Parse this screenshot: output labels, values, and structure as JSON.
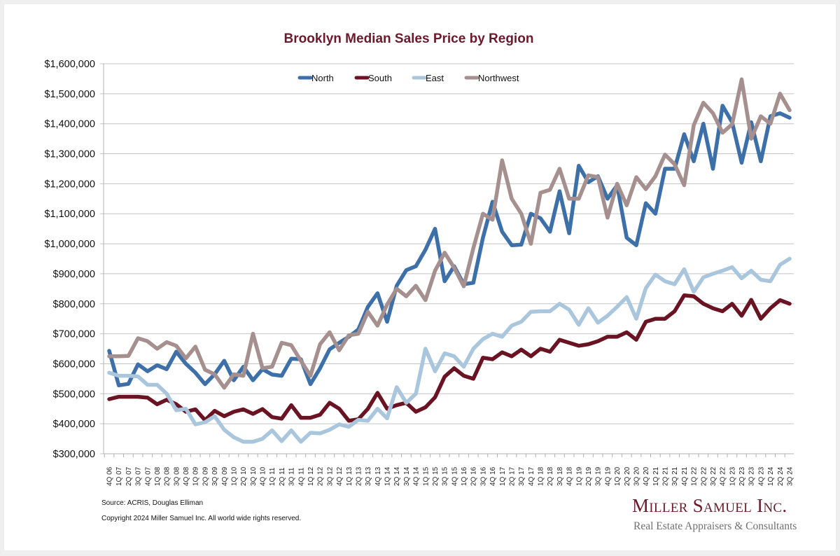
{
  "chart_data": {
    "type": "line",
    "title": "Brooklyn Median Sales Price by Region",
    "xlabel": "",
    "ylabel": "",
    "ylim": [
      300000,
      1600000
    ],
    "ytick_step": 100000,
    "yticks": [
      "$300,000",
      "$400,000",
      "$500,000",
      "$600,000",
      "$700,000",
      "$800,000",
      "$900,000",
      "$1,000,000",
      "$1,100,000",
      "$1,200,000",
      "$1,300,000",
      "$1,400,000",
      "$1,500,000",
      "$1,600,000"
    ],
    "grid": true,
    "legend_position": "top-center",
    "categories": [
      "4Q 06",
      "1Q 07",
      "2Q 07",
      "3Q 07",
      "4Q 07",
      "1Q 08",
      "2Q 08",
      "3Q 08",
      "4Q 08",
      "1Q 09",
      "2Q 09",
      "3Q 09",
      "4Q 09",
      "1Q 10",
      "2Q 10",
      "3Q 10",
      "4Q 10",
      "1Q 11",
      "2Q 11",
      "3Q 11",
      "4Q 11",
      "1Q 12",
      "2Q 12",
      "3Q 12",
      "4Q 12",
      "1Q 13",
      "2Q 13",
      "3Q 13",
      "4Q 13",
      "1Q 14",
      "2Q 14",
      "3Q 14",
      "4Q 14",
      "1Q 15",
      "2Q 15",
      "3Q 15",
      "4Q 15",
      "1Q 16",
      "2Q 16",
      "3Q 16",
      "4Q 16",
      "1Q 17",
      "2Q 17",
      "3Q 17",
      "4Q 17",
      "1Q 18",
      "2Q 18",
      "3Q 18",
      "4Q 18",
      "1Q 19",
      "2Q 19",
      "3Q 19",
      "4Q 19",
      "1Q 20",
      "2Q 20",
      "3Q 20",
      "4Q 20",
      "1Q 21",
      "2Q 21",
      "3Q 21",
      "4Q 21",
      "1Q 22",
      "2Q 22",
      "3Q 22",
      "4Q 22",
      "1Q 23",
      "2Q 23",
      "3Q 23",
      "4Q 23",
      "1Q 24",
      "2Q 24",
      "3Q 24"
    ],
    "series": [
      {
        "name": "North",
        "color": "#3d6fa8",
        "values": [
          643000,
          528000,
          533000,
          598000,
          575000,
          595000,
          582000,
          640000,
          600000,
          570000,
          532000,
          565000,
          610000,
          545000,
          590000,
          545000,
          582000,
          564000,
          560000,
          617000,
          615000,
          532000,
          585000,
          648000,
          670000,
          690000,
          714000,
          790000,
          835000,
          740000,
          860000,
          912000,
          925000,
          980000,
          1050000,
          875000,
          925000,
          865000,
          870000,
          1020000,
          1140000,
          1040000,
          995000,
          997000,
          1100000,
          1085000,
          1040000,
          1175000,
          1035000,
          1260000,
          1205000,
          1225000,
          1150000,
          1195000,
          1020000,
          995000,
          1135000,
          1100000,
          1250000,
          1250000,
          1365000,
          1275000,
          1400000,
          1250000,
          1460000,
          1405000,
          1270000,
          1405000,
          1275000,
          1425000,
          1435000,
          1420000
        ]
      },
      {
        "name": "South",
        "color": "#6a1323",
        "values": [
          482000,
          490000,
          490000,
          490000,
          487000,
          465000,
          480000,
          465000,
          440000,
          448000,
          412000,
          443000,
          425000,
          440000,
          448000,
          433000,
          449000,
          422000,
          417000,
          462000,
          420000,
          420000,
          430000,
          470000,
          450000,
          410000,
          415000,
          450000,
          503000,
          450000,
          462000,
          470000,
          440000,
          455000,
          488000,
          557000,
          585000,
          560000,
          550000,
          620000,
          615000,
          638000,
          625000,
          647000,
          625000,
          650000,
          640000,
          680000,
          670000,
          660000,
          665000,
          675000,
          690000,
          690000,
          705000,
          680000,
          740000,
          750000,
          750000,
          775000,
          828000,
          825000,
          800000,
          785000,
          775000,
          800000,
          760000,
          813000,
          750000,
          785000,
          812000,
          800000
        ]
      },
      {
        "name": "East",
        "color": "#a9c6dd",
        "values": [
          570000,
          560000,
          560000,
          558000,
          530000,
          530000,
          500000,
          445000,
          450000,
          398000,
          405000,
          425000,
          380000,
          355000,
          340000,
          340000,
          350000,
          378000,
          342000,
          378000,
          340000,
          370000,
          368000,
          380000,
          398000,
          390000,
          413000,
          410000,
          450000,
          418000,
          522000,
          470000,
          500000,
          650000,
          575000,
          635000,
          625000,
          590000,
          650000,
          682000,
          700000,
          690000,
          727000,
          740000,
          773000,
          775000,
          775000,
          800000,
          780000,
          730000,
          785000,
          737000,
          760000,
          790000,
          822000,
          750000,
          852000,
          897000,
          875000,
          865000,
          915000,
          840000,
          888000,
          900000,
          910000,
          922000,
          885000,
          910000,
          880000,
          875000,
          930000,
          950000
        ]
      },
      {
        "name": "Northwest",
        "color": "#a58f8f",
        "values": [
          625000,
          625000,
          626000,
          685000,
          675000,
          650000,
          672000,
          660000,
          618000,
          657000,
          580000,
          565000,
          520000,
          565000,
          560000,
          700000,
          585000,
          590000,
          670000,
          662000,
          610000,
          560000,
          665000,
          705000,
          645000,
          695000,
          700000,
          773000,
          727000,
          797000,
          850000,
          825000,
          860000,
          812000,
          910000,
          970000,
          920000,
          858000,
          985000,
          1100000,
          1080000,
          1278000,
          1150000,
          1100000,
          1000000,
          1170000,
          1180000,
          1250000,
          1150000,
          1150000,
          1228000,
          1222000,
          1087000,
          1200000,
          1128000,
          1222000,
          1182000,
          1225000,
          1297000,
          1265000,
          1195000,
          1395000,
          1470000,
          1435000,
          1370000,
          1398000,
          1548000,
          1350000,
          1425000,
          1400000,
          1500000,
          1445000
        ]
      }
    ]
  },
  "footer": {
    "source": "Source: ACRIS, Douglas Elliman",
    "copyright": "Copyright 2024 Miller Samuel Inc.  All world wide rights reserved."
  },
  "logo": {
    "name": "Miller Samuel Inc.",
    "tagline": "Real Estate Appraisers & Consultants"
  }
}
